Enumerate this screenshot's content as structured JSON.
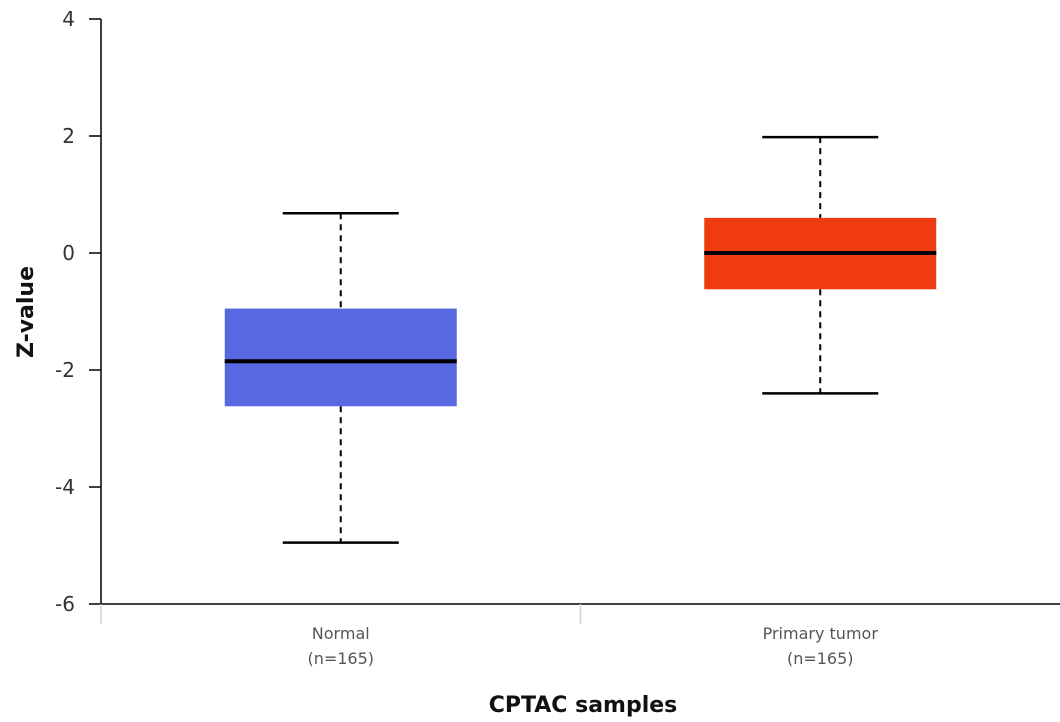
{
  "chart_data": {
    "type": "boxplot",
    "xlabel": "CPTAC samples",
    "ylabel": "Z-value",
    "ylim": [
      -6,
      4
    ],
    "yticks": [
      4,
      2,
      0,
      -2,
      -4,
      -6
    ],
    "grid": false,
    "series": [
      {
        "category": "Normal",
        "sublabel": "(n=165)",
        "min": -4.95,
        "q1": -2.62,
        "median": -1.85,
        "q3": -0.95,
        "max": 0.68,
        "color": "#5768e1"
      },
      {
        "category": "Primary tumor",
        "sublabel": "(n=165)",
        "min": -2.4,
        "q1": -0.62,
        "median": 0.0,
        "q3": 0.6,
        "max": 1.98,
        "color": "#f03a10"
      }
    ]
  }
}
